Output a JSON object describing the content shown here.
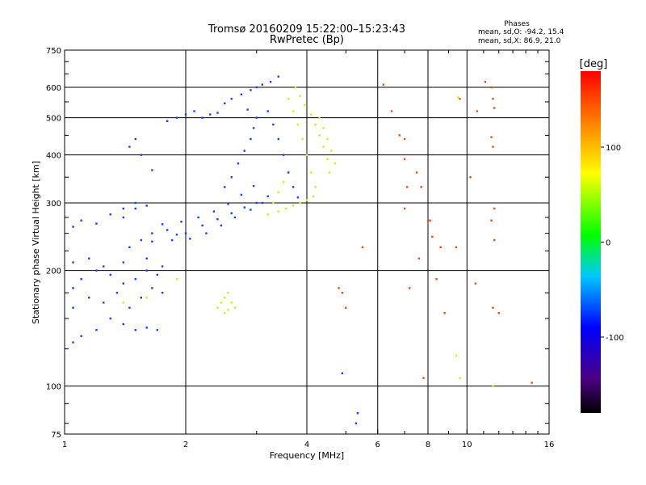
{
  "chart_data": {
    "type": "scatter",
    "title": "Tromsø 20160209 15:22:00–15:23:43",
    "subtitle": "RwPretec (Bp)",
    "xlabel": "Frequency [MHz]",
    "ylabel": "Stationary phase Virtual Height [km]",
    "x_scale": "log",
    "y_scale": "log",
    "xlim": [
      1,
      16
    ],
    "ylim": [
      75,
      750
    ],
    "x_ticks": [
      "1",
      "2",
      "4",
      "6",
      "8",
      "10",
      "16"
    ],
    "y_ticks": [
      "75",
      "100",
      "200",
      "300",
      "400",
      "500",
      "600",
      "750"
    ],
    "grid": true,
    "stats": {
      "header": "Phases",
      "o_line": "mean, sd,O: -94.2, 15.4",
      "x_line": "mean, sd,X:  86.9, 21.0"
    },
    "colorbar": {
      "label": "[deg]",
      "range": [
        -180,
        180
      ],
      "ticks": [
        "100",
        "0",
        "-100"
      ]
    },
    "series": [
      {
        "values": [
          [
            1.05,
            130
          ],
          [
            1.1,
            135
          ],
          [
            1.2,
            140
          ],
          [
            1.3,
            150
          ],
          [
            1.4,
            145
          ],
          [
            1.5,
            140
          ],
          [
            1.6,
            142
          ],
          [
            1.7,
            140
          ],
          [
            1.05,
            160
          ],
          [
            1.15,
            170
          ],
          [
            1.25,
            165
          ],
          [
            1.35,
            175
          ],
          [
            1.45,
            160
          ],
          [
            1.55,
            170
          ],
          [
            1.65,
            180
          ],
          [
            1.75,
            175
          ],
          [
            1.05,
            180
          ],
          [
            1.1,
            190
          ],
          [
            1.2,
            200
          ],
          [
            1.3,
            195
          ],
          [
            1.4,
            185
          ],
          [
            1.5,
            190
          ],
          [
            1.6,
            200
          ],
          [
            1.7,
            195
          ],
          [
            1.05,
            210
          ],
          [
            1.15,
            215
          ],
          [
            1.25,
            205
          ],
          [
            1.4,
            210
          ],
          [
            1.6,
            215
          ],
          [
            1.75,
            205
          ],
          [
            1.05,
            260
          ],
          [
            1.1,
            270
          ],
          [
            1.2,
            265
          ],
          [
            1.3,
            280
          ],
          [
            1.4,
            275
          ],
          [
            1.5,
            290
          ],
          [
            1.6,
            295
          ],
          [
            1.45,
            230
          ],
          [
            1.55,
            240
          ],
          [
            1.65,
            250
          ],
          [
            1.8,
            255
          ],
          [
            1.9,
            248
          ],
          [
            2.0,
            250
          ],
          [
            2.2,
            262
          ],
          [
            2.4,
            272
          ],
          [
            2.6,
            282
          ],
          [
            2.8,
            292
          ],
          [
            3.0,
            300
          ],
          [
            3.2,
            312
          ],
          [
            1.65,
            238
          ],
          [
            1.85,
            240
          ],
          [
            2.05,
            242
          ],
          [
            2.25,
            250
          ],
          [
            2.45,
            262
          ],
          [
            2.65,
            275
          ],
          [
            2.9,
            288
          ],
          [
            3.1,
            300
          ],
          [
            1.75,
            264
          ],
          [
            1.95,
            268
          ],
          [
            2.15,
            275
          ],
          [
            2.35,
            285
          ],
          [
            2.55,
            298
          ],
          [
            2.75,
            315
          ],
          [
            2.95,
            332
          ],
          [
            2.5,
            330
          ],
          [
            2.6,
            350
          ],
          [
            2.7,
            380
          ],
          [
            2.8,
            410
          ],
          [
            2.9,
            440
          ],
          [
            2.95,
            470
          ],
          [
            3.0,
            500
          ],
          [
            2.85,
            525
          ],
          [
            1.8,
            490
          ],
          [
            1.9,
            500
          ],
          [
            2.0,
            510
          ],
          [
            2.1,
            520
          ],
          [
            2.2,
            500
          ],
          [
            2.3,
            510
          ],
          [
            2.4,
            515
          ],
          [
            2.5,
            545
          ],
          [
            2.6,
            560
          ],
          [
            2.75,
            575
          ],
          [
            2.9,
            590
          ],
          [
            3.0,
            600
          ],
          [
            3.1,
            610
          ],
          [
            3.25,
            620
          ],
          [
            3.4,
            640
          ],
          [
            1.45,
            420
          ],
          [
            1.5,
            440
          ],
          [
            1.55,
            400
          ],
          [
            1.65,
            365
          ],
          [
            1.5,
            300
          ],
          [
            1.4,
            290
          ],
          [
            3.2,
            520
          ],
          [
            3.3,
            480
          ],
          [
            3.4,
            440
          ],
          [
            3.5,
            400
          ],
          [
            3.6,
            360
          ],
          [
            3.7,
            330
          ],
          [
            3.8,
            310
          ],
          [
            5.35,
            85
          ],
          [
            5.3,
            80
          ],
          [
            4.9,
            108
          ]
        ]
      },
      {
        "values": [
          [
            2.4,
            160
          ],
          [
            2.45,
            165
          ],
          [
            2.5,
            170
          ],
          [
            2.55,
            175
          ],
          [
            2.6,
            165
          ],
          [
            2.65,
            160
          ],
          [
            2.5,
            155
          ],
          [
            2.55,
            158
          ],
          [
            3.4,
            285
          ],
          [
            3.55,
            290
          ],
          [
            3.7,
            295
          ],
          [
            3.85,
            300
          ],
          [
            4.0,
            305
          ],
          [
            4.15,
            312
          ],
          [
            3.75,
            600
          ],
          [
            3.85,
            570
          ],
          [
            3.95,
            540
          ],
          [
            4.1,
            510
          ],
          [
            4.2,
            480
          ],
          [
            4.3,
            450
          ],
          [
            4.4,
            420
          ],
          [
            4.5,
            390
          ],
          [
            3.6,
            560
          ],
          [
            3.7,
            520
          ],
          [
            3.8,
            480
          ],
          [
            3.9,
            440
          ],
          [
            4.0,
            400
          ],
          [
            4.1,
            360
          ],
          [
            4.2,
            330
          ],
          [
            4.3,
            500
          ],
          [
            4.4,
            470
          ],
          [
            4.5,
            440
          ],
          [
            4.6,
            410
          ],
          [
            4.7,
            380
          ],
          [
            4.55,
            360
          ],
          [
            3.2,
            280
          ],
          [
            3.3,
            300
          ],
          [
            3.4,
            320
          ],
          [
            3.5,
            340
          ],
          [
            1.4,
            165
          ],
          [
            1.6,
            170
          ],
          [
            1.9,
            190
          ],
          [
            9.5,
            565
          ],
          [
            9.4,
            120
          ],
          [
            9.6,
            105
          ],
          [
            11.6,
            100
          ]
        ]
      },
      {
        "values": [
          [
            4.8,
            180
          ],
          [
            4.9,
            175
          ],
          [
            5.0,
            160
          ],
          [
            5.5,
            230
          ],
          [
            6.2,
            610
          ],
          [
            6.5,
            520
          ],
          [
            6.8,
            450
          ],
          [
            7.0,
            440
          ],
          [
            7.0,
            390
          ],
          [
            7.1,
            330
          ],
          [
            7.0,
            290
          ],
          [
            7.2,
            180
          ],
          [
            7.5,
            360
          ],
          [
            7.7,
            330
          ],
          [
            8.0,
            270
          ],
          [
            8.1,
            270
          ],
          [
            8.2,
            245
          ],
          [
            8.4,
            190
          ],
          [
            8.6,
            230
          ],
          [
            8.8,
            155
          ],
          [
            9.4,
            230
          ],
          [
            9.6,
            560
          ],
          [
            10.6,
            520
          ],
          [
            11.1,
            620
          ],
          [
            11.5,
            600
          ],
          [
            11.6,
            560
          ],
          [
            11.7,
            530
          ],
          [
            11.5,
            445
          ],
          [
            11.6,
            420
          ],
          [
            11.7,
            290
          ],
          [
            11.5,
            270
          ],
          [
            11.7,
            240
          ],
          [
            11.6,
            160
          ],
          [
            12.0,
            155
          ],
          [
            14.5,
            102
          ],
          [
            7.8,
            105
          ],
          [
            7.6,
            215
          ],
          [
            10.5,
            185
          ],
          [
            10.2,
            350
          ]
        ]
      }
    ]
  }
}
